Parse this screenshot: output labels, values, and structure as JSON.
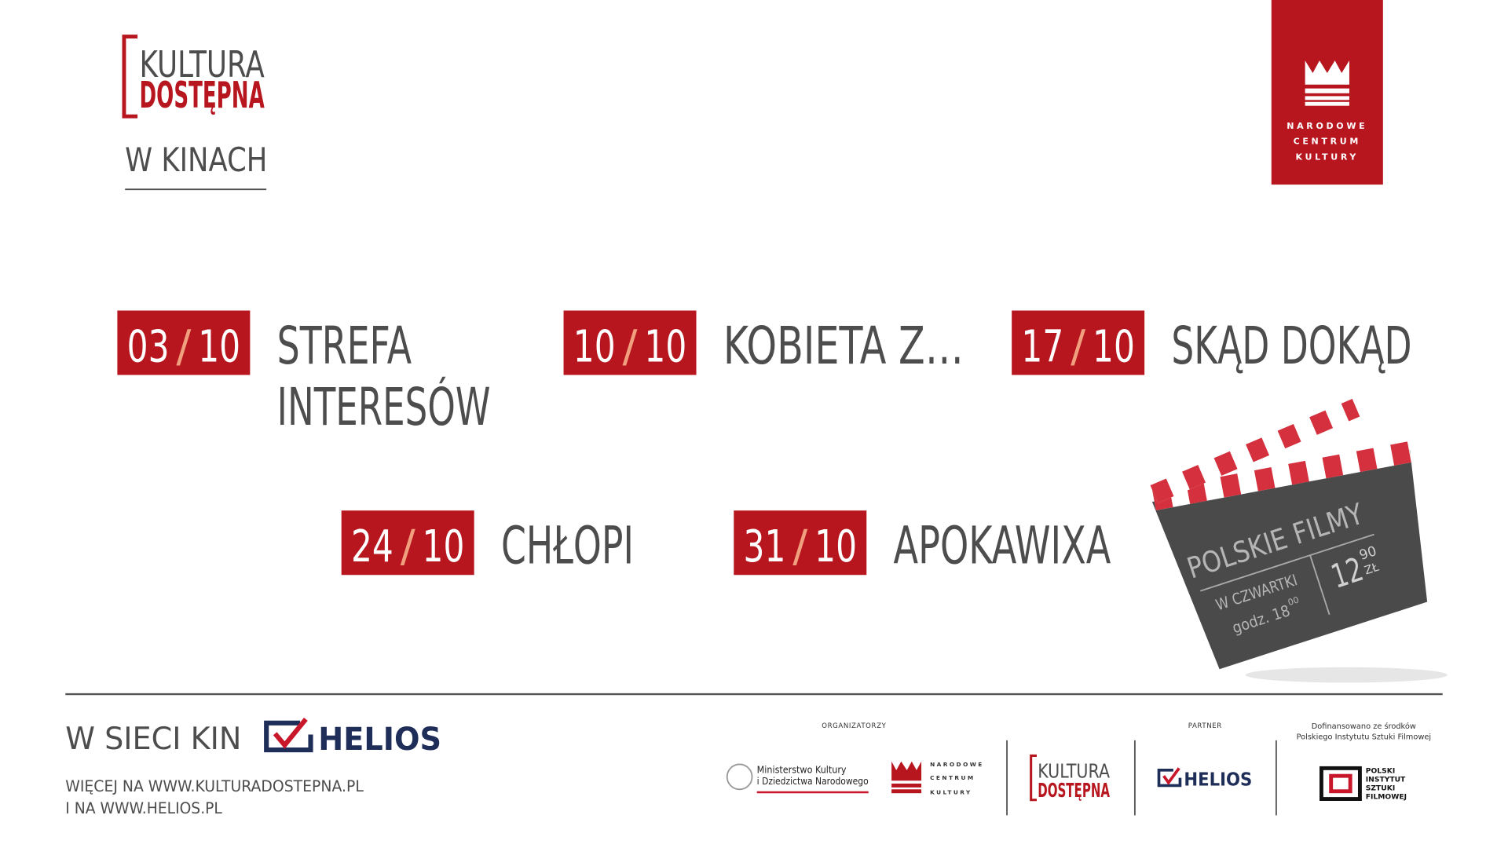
{
  "header": {
    "logo": {
      "line1": "KULTURA",
      "line2": "DOSTĘPNA"
    },
    "subtitle": "W KINACH"
  },
  "nck_logo": {
    "lines": [
      "NARODOWE",
      "CENTRUM",
      "KULTURY"
    ]
  },
  "date_separator": "/",
  "screenings": [
    {
      "day": "03",
      "month": "10",
      "title_lines": [
        "STREFA",
        "INTERESÓW"
      ]
    },
    {
      "day": "10",
      "month": "10",
      "title_lines": [
        "KOBIETA Z…"
      ]
    },
    {
      "day": "17",
      "month": "10",
      "title_lines": [
        "SKĄD DOKĄD"
      ]
    },
    {
      "day": "24",
      "month": "10",
      "title_lines": [
        "CHŁOPI"
      ]
    },
    {
      "day": "31",
      "month": "10",
      "title_lines": [
        "APOKAWIXA"
      ]
    }
  ],
  "clapper": {
    "title": "POLSKIE FILMY",
    "day": "W CZWARTKI",
    "time": "godz. 18",
    "time_minutes": "00",
    "price_main": "12",
    "price_fraction": "90",
    "currency": "ZŁ"
  },
  "footer": {
    "network": "W SIECI KIN",
    "helios": "HELIOS",
    "more_line1": "WIĘCEJ NA WWW.KULTURADOSTEPNA.PL",
    "more_line2": "I NA WWW.HELIOS.PL"
  },
  "sponsors": {
    "organizers_label": "ORGANIZATORZY",
    "ministry_lines": [
      "Ministerstwo Kultury",
      "i Dziedzictwa Narodowego"
    ],
    "partner_label": "PARTNER",
    "funding_lines": [
      "Dofinansowano ze środków",
      "Polskiego Instytutu Sztuki Filmowej"
    ],
    "pisf_lines": [
      "POLSKI",
      "INSTYTUT",
      "SZTUKI",
      "FILMOWEJ"
    ]
  }
}
